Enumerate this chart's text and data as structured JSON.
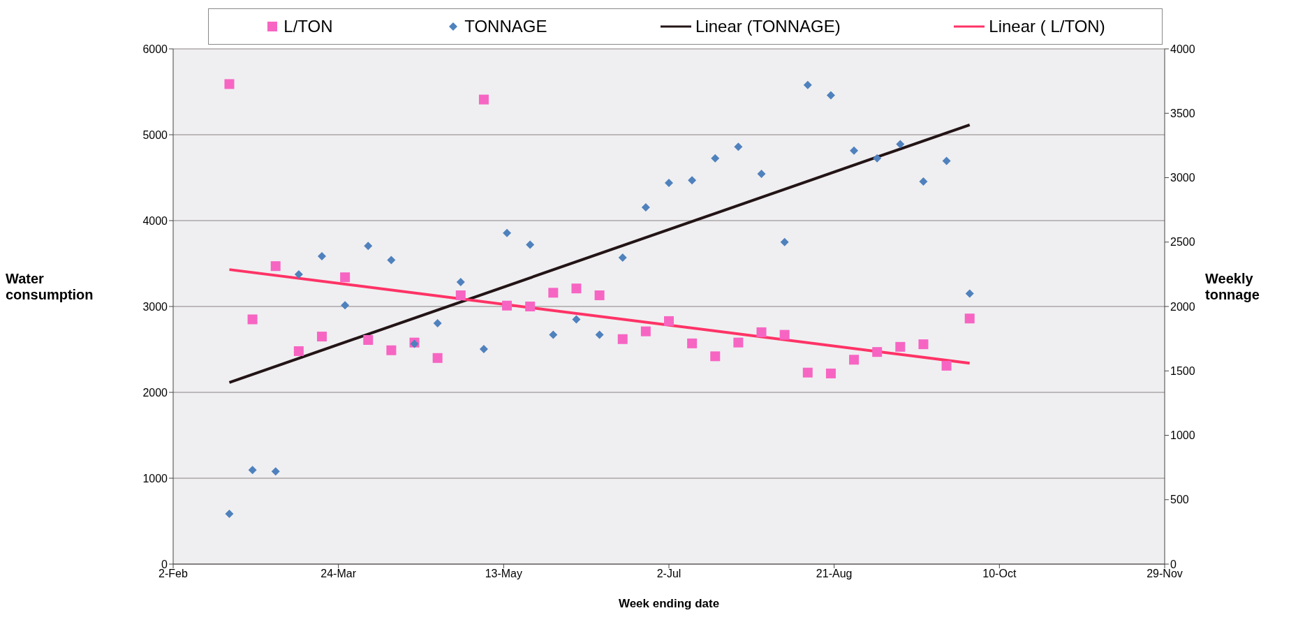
{
  "chart_data": {
    "type": "scatter",
    "xlabel": "Week ending date",
    "ylabel": "Water consumption",
    "y2label": "Weekly tonnage",
    "xlim": [
      "--02-02",
      "--11-29"
    ],
    "xticks": [
      {
        "value": "--02-02",
        "label": "2-Feb"
      },
      {
        "value": "--03-24",
        "label": "24-Mar"
      },
      {
        "value": "--05-13",
        "label": "13-May"
      },
      {
        "value": "--07-02",
        "label": "2-Jul"
      },
      {
        "value": "--08-21",
        "label": "21-Aug"
      },
      {
        "value": "--10-10",
        "label": "10-Oct"
      },
      {
        "value": "--11-29",
        "label": "29-Nov"
      }
    ],
    "ylim": [
      0,
      6000
    ],
    "yticks": [
      0,
      1000,
      2000,
      3000,
      4000,
      5000,
      6000
    ],
    "y2lim": [
      0,
      4000
    ],
    "y2ticks": [
      0,
      500,
      1000,
      1500,
      2000,
      2500,
      3000,
      3500,
      4000
    ],
    "grid": "y",
    "legend": "top",
    "x": [
      "--02-19",
      "--02-26",
      "--03-05",
      "--03-12",
      "--03-19",
      "--03-26",
      "--04-02",
      "--04-09",
      "--04-16",
      "--04-23",
      "--04-30",
      "--05-07",
      "--05-14",
      "--05-21",
      "--05-28",
      "--06-04",
      "--06-11",
      "--06-18",
      "--06-25",
      "--07-02",
      "--07-09",
      "--07-16",
      "--07-23",
      "--07-30",
      "--08-06",
      "--08-13",
      "--08-20",
      "--08-27",
      "--09-03",
      "--09-10",
      "--09-17",
      "--09-24",
      "--10-01"
    ],
    "series": [
      {
        "name": "L/TON",
        "marker": "square",
        "color": "#f765c3",
        "values": [
          5590,
          2850,
          3470,
          2480,
          2650,
          3340,
          2610,
          2490,
          2580,
          2400,
          3130,
          5410,
          3010,
          3000,
          3160,
          3210,
          3130,
          2620,
          2710,
          2830,
          2570,
          2420,
          2580,
          2700,
          2670,
          2230,
          2220,
          2380,
          2470,
          2530,
          2560,
          2310,
          2860
        ]
      },
      {
        "name": "TONNAGE",
        "marker": "diamond",
        "axis": "y2",
        "color": "#4f81bd",
        "values": [
          390,
          730,
          720,
          2250,
          2390,
          2010,
          2470,
          2360,
          1710,
          1870,
          2190,
          1670,
          2570,
          2480,
          1780,
          1900,
          1780,
          2380,
          2770,
          2960,
          2980,
          3150,
          3240,
          3030,
          2500,
          3720,
          3640,
          3210,
          3150,
          3260,
          2970,
          3130,
          2100
        ]
      },
      {
        "name": "Linear (TONNAGE)",
        "type": "line",
        "axis": "y2",
        "marker": "none",
        "line_style": "solid",
        "color": "#231416",
        "x": [
          "--02-19",
          "--10-01"
        ],
        "values": [
          1410,
          3410
        ]
      },
      {
        "name": "Linear ( L/TON)",
        "type": "line",
        "marker": "none",
        "line_style": "solid",
        "color": "#ff3366",
        "x": [
          "--02-19",
          "--10-01"
        ],
        "values": [
          3430,
          2340
        ]
      }
    ]
  }
}
